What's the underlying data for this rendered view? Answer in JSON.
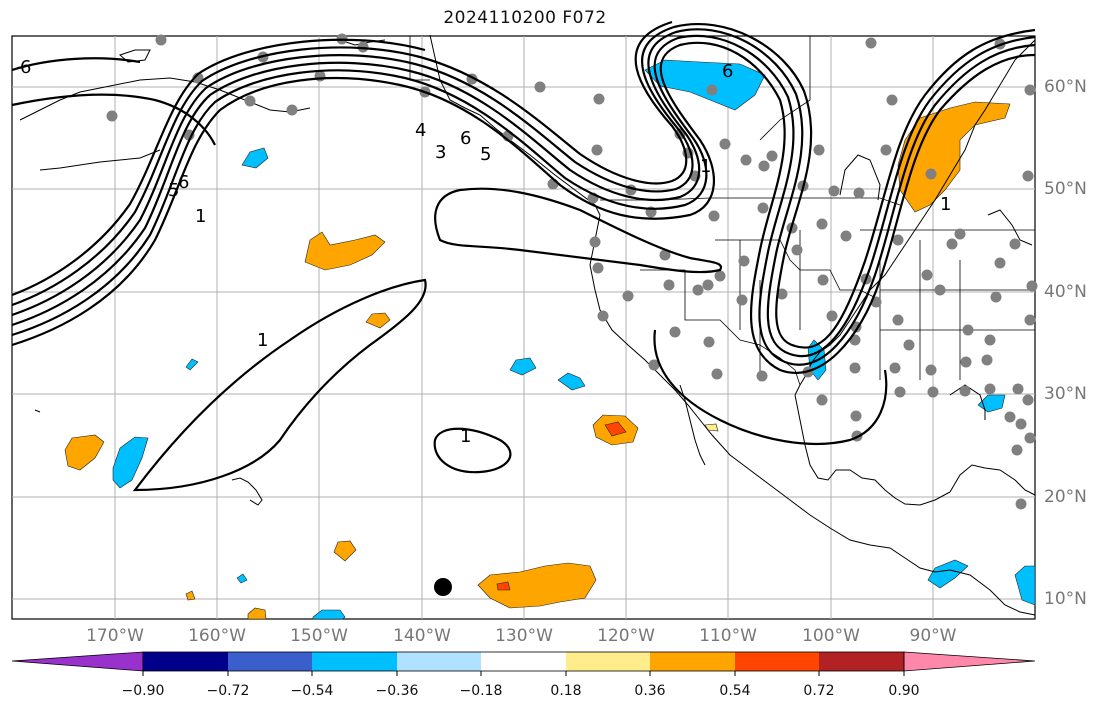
{
  "title": "2024110200 F072",
  "map": {
    "projection": "plate-carree",
    "lon_range": [
      -180,
      -80
    ],
    "lat_range": [
      8,
      65
    ],
    "grid": true,
    "fill_colors": {
      "strong_neg": "#00bfff",
      "pos": "#ffa500",
      "strong_pos": "#ff4500"
    },
    "contour_color": "#000000",
    "contour_labels": [
      "6",
      "5",
      "6",
      "4",
      "3",
      "6",
      "5",
      "1",
      "1",
      "1",
      "1",
      "6",
      "1"
    ],
    "marker": {
      "lon": -137.7,
      "lat": 11.0,
      "color": "#000000"
    },
    "station_dot_color": "#808080"
  },
  "axes": {
    "lon_labels": [
      "170°W",
      "160°W",
      "150°W",
      "140°W",
      "130°W",
      "120°W",
      "110°W",
      "100°W",
      "90°W"
    ],
    "lat_labels": [
      "60°N",
      "50°N",
      "40°N",
      "30°N",
      "20°N",
      "10°N"
    ]
  },
  "colorbar": {
    "ticks": [
      "−0.90",
      "−0.72",
      "−0.54",
      "−0.36",
      "−0.18",
      "0.18",
      "0.36",
      "0.54",
      "0.72",
      "0.90"
    ],
    "colors": [
      "#9932cc",
      "#00008b",
      "#3a5fcd",
      "#00bfff",
      "#b0e2ff",
      "#ffffff",
      "#ffec8b",
      "#ffa500",
      "#ff4500",
      "#b22222",
      "#ff88aa"
    ]
  }
}
